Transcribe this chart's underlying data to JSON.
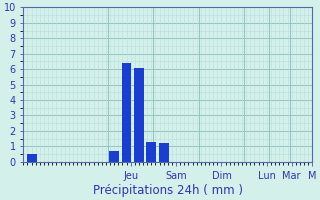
{
  "background_color": "#d4f0eb",
  "bar_color": "#1a3fcc",
  "xlabel": "Précipitations 24h ( mm )",
  "ylim": [
    0,
    10
  ],
  "yticks": [
    0,
    1,
    2,
    3,
    4,
    5,
    6,
    7,
    8,
    9,
    10
  ],
  "xlim": [
    0,
    35
  ],
  "bar_positions": [
    1.0,
    11.0,
    12.5,
    14.0,
    15.5,
    17.0
  ],
  "bar_heights": [
    0.5,
    0.7,
    6.4,
    6.1,
    1.3,
    1.2
  ],
  "bar_width": 1.2,
  "day_labels": [
    "Jeu",
    "Sam",
    "Dim",
    "Lun",
    "Mar",
    "M"
  ],
  "day_positions": [
    13.0,
    18.5,
    24.0,
    29.5,
    32.5,
    35.0
  ],
  "grid_color": "#9ececa",
  "spine_color": "#5566aa",
  "tick_color": "#3333aa",
  "label_color": "#3333aa",
  "xlabel_fontsize": 8.5,
  "tick_fontsize": 7,
  "day_fontsize": 7,
  "grid_minor_color": "#b8deda",
  "grid_major_color": "#8abcba"
}
